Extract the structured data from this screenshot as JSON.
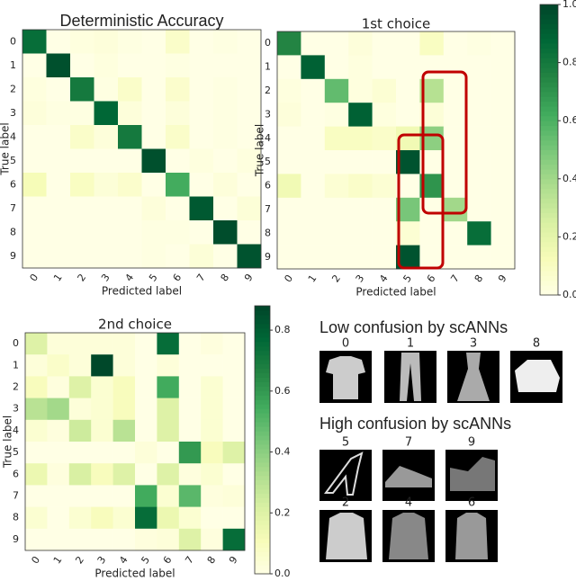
{
  "chart_data": [
    {
      "type": "heatmap",
      "title": "Deterministic Accuracy",
      "xlabel": "Predicted label",
      "ylabel": "True label",
      "x_categories": [
        "0",
        "1",
        "2",
        "3",
        "4",
        "5",
        "6",
        "7",
        "8",
        "9"
      ],
      "y_categories": [
        "0",
        "1",
        "2",
        "3",
        "4",
        "5",
        "6",
        "7",
        "8",
        "9"
      ],
      "values": [
        [
          0.85,
          0.0,
          0.02,
          0.03,
          0.01,
          0.0,
          0.08,
          0.0,
          0.01,
          0.0
        ],
        [
          0.0,
          0.96,
          0.0,
          0.02,
          0.0,
          0.0,
          0.01,
          0.0,
          0.0,
          0.0
        ],
        [
          0.02,
          0.0,
          0.8,
          0.01,
          0.08,
          0.0,
          0.07,
          0.0,
          0.01,
          0.0
        ],
        [
          0.03,
          0.01,
          0.01,
          0.88,
          0.03,
          0.0,
          0.03,
          0.0,
          0.01,
          0.0
        ],
        [
          0.0,
          0.0,
          0.08,
          0.03,
          0.8,
          0.0,
          0.08,
          0.0,
          0.01,
          0.0
        ],
        [
          0.0,
          0.0,
          0.0,
          0.0,
          0.0,
          0.96,
          0.0,
          0.02,
          0.0,
          0.02
        ],
        [
          0.13,
          0.0,
          0.1,
          0.04,
          0.07,
          0.0,
          0.62,
          0.0,
          0.03,
          0.0
        ],
        [
          0.0,
          0.0,
          0.0,
          0.0,
          0.0,
          0.03,
          0.0,
          0.93,
          0.0,
          0.04
        ],
        [
          0.0,
          0.0,
          0.0,
          0.0,
          0.0,
          0.01,
          0.01,
          0.0,
          0.97,
          0.0
        ],
        [
          0.0,
          0.0,
          0.0,
          0.0,
          0.0,
          0.01,
          0.0,
          0.04,
          0.0,
          0.95
        ]
      ]
    },
    {
      "type": "heatmap",
      "title": "1st choice",
      "xlabel": "Predicted label",
      "ylabel": "True label",
      "x_categories": [
        "0",
        "1",
        "2",
        "3",
        "4",
        "5",
        "6",
        "7",
        "8",
        "9"
      ],
      "y_categories": [
        "0",
        "1",
        "2",
        "3",
        "4",
        "5",
        "6",
        "7",
        "8",
        "9"
      ],
      "values": [
        [
          0.75,
          0.0,
          0.0,
          0.03,
          0.0,
          0.0,
          0.1,
          0.0,
          0.01,
          0.0
        ],
        [
          0.0,
          0.9,
          0.0,
          0.02,
          0.0,
          0.0,
          0.0,
          0.0,
          0.0,
          0.0
        ],
        [
          0.02,
          0.0,
          0.55,
          0.02,
          0.05,
          0.0,
          0.35,
          0.0,
          0.0,
          0.0
        ],
        [
          0.03,
          0.0,
          0.01,
          0.9,
          0.02,
          0.0,
          0.04,
          0.0,
          0.0,
          0.0
        ],
        [
          0.0,
          0.0,
          0.1,
          0.1,
          0.08,
          0.15,
          0.45,
          0.0,
          0.0,
          0.0
        ],
        [
          0.0,
          0.0,
          0.0,
          0.0,
          0.0,
          0.95,
          0.0,
          0.0,
          0.0,
          0.0
        ],
        [
          0.15,
          0.0,
          0.05,
          0.08,
          0.05,
          0.0,
          0.7,
          0.0,
          0.0,
          0.0
        ],
        [
          0.0,
          0.0,
          0.0,
          0.0,
          0.0,
          0.5,
          0.0,
          0.4,
          0.0,
          0.0
        ],
        [
          0.0,
          0.0,
          0.0,
          0.0,
          0.0,
          0.05,
          0.0,
          0.0,
          0.85,
          0.0
        ],
        [
          0.0,
          0.0,
          0.0,
          0.0,
          0.0,
          0.95,
          0.0,
          0.0,
          0.0,
          0.0
        ]
      ],
      "clim": [
        0,
        1
      ],
      "cticks": [
        {
          "value": 0,
          "label": "0.0"
        },
        {
          "value": 0.2,
          "label": "0.2"
        },
        {
          "value": 0.4,
          "label": "0.4"
        },
        {
          "value": 0.6,
          "label": "0.6"
        },
        {
          "value": 0.8,
          "label": "0.8"
        },
        {
          "value": 1,
          "label": "1.0"
        }
      ]
    },
    {
      "type": "heatmap",
      "title": "2nd choice",
      "xlabel": "Predicted label",
      "ylabel": "True label",
      "x_categories": [
        "0",
        "1",
        "2",
        "3",
        "4",
        "5",
        "6",
        "7",
        "8",
        "9"
      ],
      "y_categories": [
        "0",
        "1",
        "2",
        "3",
        "4",
        "5",
        "6",
        "7",
        "8",
        "9"
      ],
      "values": [
        [
          0.2,
          0.03,
          0.03,
          0.03,
          0.03,
          0.0,
          0.75,
          0.0,
          0.02,
          0.0
        ],
        [
          0.03,
          0.07,
          0.03,
          0.87,
          0.03,
          0.0,
          0.03,
          0.0,
          0.0,
          0.0
        ],
        [
          0.1,
          0.02,
          0.2,
          0.05,
          0.1,
          0.0,
          0.55,
          0.0,
          0.05,
          0.0
        ],
        [
          0.3,
          0.35,
          0.03,
          0.05,
          0.1,
          0.0,
          0.2,
          0.0,
          0.05,
          0.0
        ],
        [
          0.05,
          0.02,
          0.25,
          0.05,
          0.3,
          0.0,
          0.2,
          0.0,
          0.05,
          0.0
        ],
        [
          0.0,
          0.0,
          0.0,
          0.0,
          0.0,
          0.03,
          0.0,
          0.6,
          0.1,
          0.2
        ],
        [
          0.15,
          0.02,
          0.22,
          0.1,
          0.2,
          0.0,
          0.2,
          0.02,
          0.05,
          0.0
        ],
        [
          0.0,
          0.0,
          0.0,
          0.0,
          0.0,
          0.55,
          0.05,
          0.5,
          0.02,
          0.03
        ],
        [
          0.05,
          0.0,
          0.05,
          0.1,
          0.05,
          0.75,
          0.15,
          0.05,
          0.0,
          0.0
        ],
        [
          0.0,
          0.0,
          0.0,
          0.0,
          0.0,
          0.02,
          0.03,
          0.2,
          0.02,
          0.75
        ]
      ],
      "clim": [
        0,
        0.88
      ],
      "cticks": [
        {
          "value": 0,
          "label": "0.0"
        },
        {
          "value": 0.2,
          "label": "0.2"
        },
        {
          "value": 0.4,
          "label": "0.4"
        },
        {
          "value": 0.6,
          "label": "0.6"
        },
        {
          "value": 0.8,
          "label": "0.8"
        }
      ]
    }
  ],
  "colormap": [
    "#ffffe5",
    "#f7fcb9",
    "#d9f0a3",
    "#addd8e",
    "#78c679",
    "#41ab5d",
    "#238443",
    "#006837",
    "#004529"
  ],
  "thumbnails": {
    "low_title": "Low confusion by scANNs",
    "low_labels": [
      "0",
      "1",
      "3",
      "8"
    ],
    "high_title": "High confusion by scANNs",
    "high_labels": [
      "5",
      "7",
      "9",
      "2",
      "4",
      "6"
    ]
  }
}
